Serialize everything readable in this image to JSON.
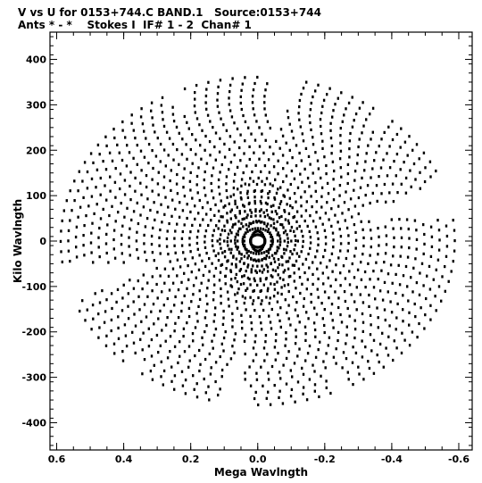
{
  "chart_data": {
    "type": "scatter",
    "title": "V vs U for 0153+744.C BAND.1   Source:0153+744",
    "subtitle": "Ants * - *    Stokes I  IF# 1 - 2  Chan# 1",
    "xlabel": "Mega Wavlngth",
    "ylabel": "Kilo Wavlngth",
    "xlim": [
      0.62,
      -0.64
    ],
    "ylim": [
      -460,
      460
    ],
    "x_ticks": [
      "0.6",
      "0.4",
      "0.2",
      "0.0",
      "-0.2",
      "-0.4",
      "-0.6"
    ],
    "y_ticks": [
      "400",
      "300",
      "200",
      "100",
      "0",
      "-100",
      "-200",
      "-300",
      "-400"
    ],
    "x_tick_values": [
      0.6,
      0.4,
      0.2,
      0.0,
      -0.2,
      -0.4,
      -0.6
    ],
    "y_tick_values": [
      400,
      300,
      200,
      100,
      0,
      -100,
      -200,
      -300,
      -400
    ],
    "series": [
      {
        "description_of_pattern": "uv-coverage: ~6 radial spokes of concentric elliptical tracks, point-symmetric about the origin",
        "arm_angles_deg": [
          -35,
          5,
          25,
          50,
          80,
          115,
          145
        ],
        "u_extent_mega": 0.6,
        "v_extent_kilo": 440,
        "marker": "small filled square",
        "color": "#000000"
      }
    ],
    "grid": false,
    "legend": "none"
  }
}
